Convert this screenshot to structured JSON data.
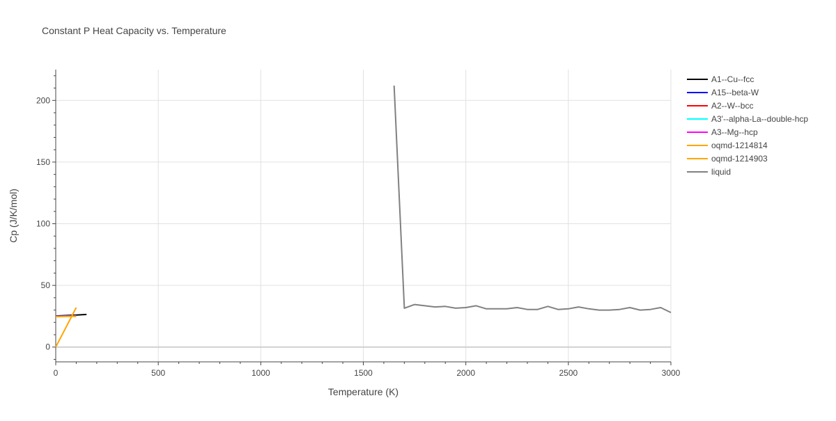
{
  "chart_data": {
    "type": "line",
    "title": "Constant P Heat Capacity vs. Temperature",
    "xlabel": "Temperature (K)",
    "ylabel": "Cp (J/K/mol)",
    "xlim": [
      0,
      3000
    ],
    "ylim": [
      -12,
      225
    ],
    "xticks": [
      0,
      500,
      1000,
      1500,
      2000,
      2500,
      3000
    ],
    "yticks": [
      0,
      50,
      100,
      150,
      200
    ],
    "grid": true,
    "legend_position": "right",
    "series": [
      {
        "name": "A1--Cu--fcc",
        "color": "#000000",
        "x": [
          0,
          50,
          100,
          150
        ],
        "y": [
          25.2,
          25.6,
          26.0,
          26.4
        ]
      },
      {
        "name": "A15--beta-W",
        "color": "#0000ff",
        "x": [
          0,
          50,
          100
        ],
        "y": [
          24.9,
          25.1,
          25.3
        ]
      },
      {
        "name": "A2--W--bcc",
        "color": "#ff0000",
        "x": [
          0,
          50,
          100
        ],
        "y": [
          24.8,
          25.0,
          25.2
        ]
      },
      {
        "name": "A3'--alpha-La--double-hcp",
        "color": "#00ffff",
        "x": [
          0,
          50,
          100
        ],
        "y": [
          24.9,
          25.1,
          25.3
        ]
      },
      {
        "name": "A3--Mg--hcp",
        "color": "#ff00ff",
        "x": [
          0,
          50,
          100
        ],
        "y": [
          24.8,
          25.0,
          25.2
        ]
      },
      {
        "name": "oqmd-1214814",
        "color": "#ffa500",
        "x": [
          0,
          50,
          100
        ],
        "y": [
          24.7,
          24.8,
          24.9
        ]
      },
      {
        "name": "oqmd-1214903",
        "color": "#ffa500",
        "x": [
          0,
          50,
          100
        ],
        "y": [
          0,
          16,
          32
        ]
      },
      {
        "name": "liquid",
        "color": "#808080",
        "x": [
          1650,
          1700,
          1750,
          1800,
          1850,
          1900,
          1950,
          2000,
          2050,
          2100,
          2150,
          2200,
          2250,
          2300,
          2350,
          2400,
          2450,
          2500,
          2550,
          2600,
          2650,
          2700,
          2750,
          2800,
          2850,
          2900,
          2950,
          3000
        ],
        "y": [
          212,
          31.5,
          34.5,
          33.5,
          32.5,
          33.0,
          31.5,
          32.0,
          33.5,
          31.0,
          31.0,
          31.0,
          32.0,
          30.5,
          30.5,
          33.0,
          30.5,
          31.0,
          32.5,
          31.0,
          30.0,
          30.0,
          30.5,
          32.0,
          30.0,
          30.5,
          32.0,
          28.0
        ]
      }
    ]
  }
}
